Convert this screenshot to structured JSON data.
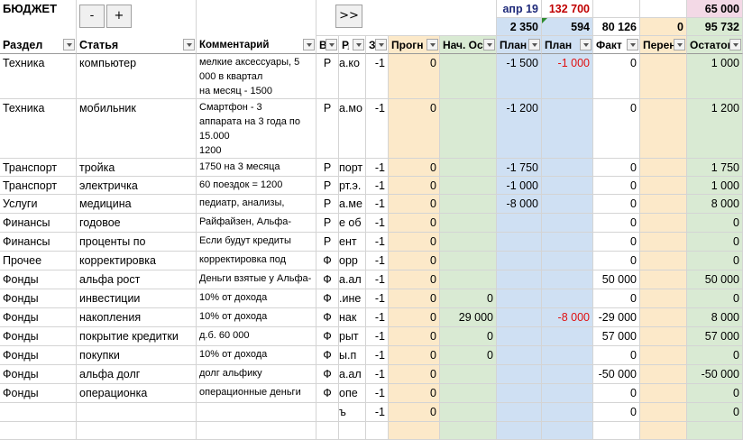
{
  "title": "БЮДЖЕТ",
  "buttons": {
    "minus": "-",
    "plus": "+",
    "expand": ">>"
  },
  "top": {
    "month": "апр 19",
    "month_total": "132 700",
    "corner_total": "65 000",
    "row2": {
      "plan": "2 350",
      "plan2": "594",
      "fact": "80 126",
      "transfer": "0",
      "balance": "95 732"
    }
  },
  "columns": [
    {
      "id": "section",
      "label": "Раздел"
    },
    {
      "id": "article",
      "label": "Статья"
    },
    {
      "id": "comment",
      "label": "Комментарий"
    },
    {
      "id": "v",
      "label": "В"
    },
    {
      "id": "r",
      "label": "Р"
    },
    {
      "id": "z",
      "label": "З"
    },
    {
      "id": "forecast",
      "label": "Прогн"
    },
    {
      "id": "start",
      "label": "Нач. Ос"
    },
    {
      "id": "plan",
      "label": "План"
    },
    {
      "id": "plan2",
      "label": "План"
    },
    {
      "id": "fact",
      "label": "Факт"
    },
    {
      "id": "transfer",
      "label": "Перен"
    },
    {
      "id": "balance",
      "label": "Остаток"
    }
  ],
  "colors": {
    "forecast_bg": "#fce9c9",
    "start_bg": "#d9ead3",
    "plan_bg": "#cfe0f3",
    "transfer_bg": "#fce9c9",
    "balance_bg": "#d9ead3",
    "corner_bg": "#f3d9e6",
    "month_color": "#1f2a7a",
    "total_color": "#c00000"
  },
  "rows": [
    {
      "section": "Техника",
      "article": "компьютер",
      "comment": [
        "мелкие аксессуары, 5",
        "000 в квартал",
        "на месяц - 1500"
      ],
      "v": "Р",
      "r": "а.ко",
      "z": "-1",
      "forecast": "0",
      "start": "",
      "plan": "-1 500",
      "plan2": "-1 000",
      "fact": "0",
      "transfer": "",
      "balance": "1 000"
    },
    {
      "section": "Техника",
      "article": "мобильник",
      "comment": [
        "Смартфон - 3",
        "аппарата на 3 года по",
        "15.000",
        "1200"
      ],
      "v": "Р",
      "r": "а.мо",
      "z": "-1",
      "forecast": "0",
      "start": "",
      "plan": "-1 200",
      "plan2": "",
      "fact": "0",
      "transfer": "",
      "balance": "1 200"
    },
    {
      "section": "Транспорт",
      "article": "тройка",
      "comment": [
        "1750 на 3 месяца"
      ],
      "v": "Р",
      "r": "порт",
      "z": "-1",
      "forecast": "0",
      "start": "",
      "plan": "-1 750",
      "plan2": "",
      "fact": "0",
      "transfer": "",
      "balance": "1 750"
    },
    {
      "section": "Транспорт",
      "article": "электричка",
      "comment": [
        "60 поездок = 1200"
      ],
      "v": "Р",
      "r": "рт.э.",
      "z": "-1",
      "forecast": "0",
      "start": "",
      "plan": "-1 000",
      "plan2": "",
      "fact": "0",
      "transfer": "",
      "balance": "1 000"
    },
    {
      "section": "Услуги",
      "article": "медицина",
      "comment": [
        "педиатр, анализы,"
      ],
      "v": "Р",
      "r": "а.ме",
      "z": "-1",
      "forecast": "0",
      "start": "",
      "plan": "-8 000",
      "plan2": "",
      "fact": "0",
      "transfer": "",
      "balance": "8 000"
    },
    {
      "section": "Финансы",
      "article": "годовое",
      "comment": [
        "Райфайзен, Альфа-"
      ],
      "v": "Р",
      "r": "е об",
      "z": "-1",
      "forecast": "0",
      "start": "",
      "plan": "",
      "plan2": "",
      "fact": "0",
      "transfer": "",
      "balance": "0"
    },
    {
      "section": "Финансы",
      "article": "проценты по",
      "comment": [
        "Если будут кредиты"
      ],
      "v": "Р",
      "r": "ент",
      "z": "-1",
      "forecast": "0",
      "start": "",
      "plan": "",
      "plan2": "",
      "fact": "0",
      "transfer": "",
      "balance": "0"
    },
    {
      "section": "Прочее",
      "article": "корректировка",
      "comment": [
        "корректировка под"
      ],
      "v": "Ф",
      "r": "орр",
      "z": "-1",
      "forecast": "0",
      "start": "",
      "plan": "",
      "plan2": "",
      "fact": "0",
      "transfer": "",
      "balance": "0"
    },
    {
      "section": "Фонды",
      "article": "альфа рост",
      "comment": [
        "Деньги взятые у Альфа-"
      ],
      "v": "Ф",
      "r": "а.ал",
      "z": "-1",
      "forecast": "0",
      "start": "",
      "plan": "",
      "plan2": "",
      "fact": "50 000",
      "transfer": "",
      "balance": "50 000"
    },
    {
      "section": "Фонды",
      "article": "инвестиции",
      "comment": [
        "10% от дохода"
      ],
      "v": "Ф",
      "r": ".ине",
      "z": "-1",
      "forecast": "0",
      "start": "0",
      "plan": "",
      "plan2": "",
      "fact": "0",
      "transfer": "",
      "balance": "0"
    },
    {
      "section": "Фонды",
      "article": "накопления",
      "comment": [
        "10% от дохода"
      ],
      "v": "Ф",
      "r": "нак",
      "z": "-1",
      "forecast": "0",
      "start": "29 000",
      "plan": "",
      "plan2": "-8 000",
      "fact": "-29 000",
      "transfer": "",
      "balance": "8 000"
    },
    {
      "section": "Фонды",
      "article": "покрытие кредитки",
      "comment": [
        "д.б. 60 000"
      ],
      "v": "Ф",
      "r": "рыт",
      "z": "-1",
      "forecast": "0",
      "start": "0",
      "plan": "",
      "plan2": "",
      "fact": "57 000",
      "transfer": "",
      "balance": "57 000"
    },
    {
      "section": "Фонды",
      "article": "покупки",
      "comment": [
        "10% от дохода"
      ],
      "v": "Ф",
      "r": "ы.п",
      "z": "-1",
      "forecast": "0",
      "start": "0",
      "plan": "",
      "plan2": "",
      "fact": "0",
      "transfer": "",
      "balance": "0"
    },
    {
      "section": "Фонды",
      "article": "альфа долг",
      "comment": [
        "долг альфику"
      ],
      "v": "Ф",
      "r": "а.ал",
      "z": "-1",
      "forecast": "0",
      "start": "",
      "plan": "",
      "plan2": "",
      "fact": "-50 000",
      "transfer": "",
      "balance": "-50 000"
    },
    {
      "section": "Фонды",
      "article": "операционка",
      "comment": [
        "операционные деньги"
      ],
      "v": "Ф",
      "r": "опе",
      "z": "-1",
      "forecast": "0",
      "start": "",
      "plan": "",
      "plan2": "",
      "fact": "0",
      "transfer": "",
      "balance": "0"
    },
    {
      "section": "",
      "article": "",
      "comment": [
        ""
      ],
      "v": "",
      "r": "ъ",
      "z": "-1",
      "forecast": "0",
      "start": "",
      "plan": "",
      "plan2": "",
      "fact": "0",
      "transfer": "",
      "balance": "0"
    },
    {
      "section": "",
      "article": "",
      "comment": [
        ""
      ],
      "v": "",
      "r": "",
      "z": "",
      "forecast": "",
      "start": "",
      "plan": "",
      "plan2": "",
      "fact": "",
      "transfer": "",
      "balance": ""
    }
  ]
}
